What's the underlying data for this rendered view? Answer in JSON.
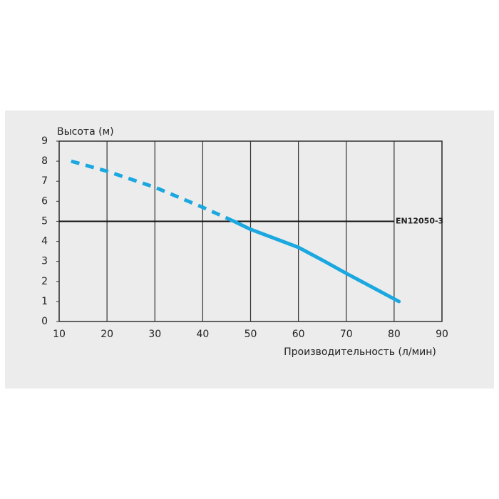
{
  "chart_data": {
    "type": "line",
    "ylabel": "Высота (м)",
    "xlabel": "Производительность (л/мин)",
    "xlim": [
      10,
      90
    ],
    "xticks": [
      10,
      20,
      30,
      40,
      50,
      60,
      70,
      80,
      90
    ],
    "ylim": [
      0,
      9
    ],
    "yticks": [
      0,
      1,
      2,
      3,
      4,
      5,
      6,
      7,
      8,
      9
    ],
    "vertical_grid": true,
    "series": [
      {
        "color": "#1ba8e0",
        "style": "dashed",
        "x": [
          12.5,
          20,
          30,
          40,
          46.5
        ],
        "values": [
          8,
          7.5,
          6.7,
          5.7,
          5.0
        ]
      },
      {
        "color": "#1ba8e0",
        "style": "solid",
        "x": [
          46.5,
          50,
          60,
          65.5,
          70,
          81
        ],
        "values": [
          5.0,
          4.6,
          3.7,
          3.0,
          2.4,
          1.0
        ]
      }
    ],
    "reference_line": {
      "value": 5,
      "label": "EN12050-3",
      "color": "#111111",
      "label_color": "#1ba8e0"
    }
  }
}
